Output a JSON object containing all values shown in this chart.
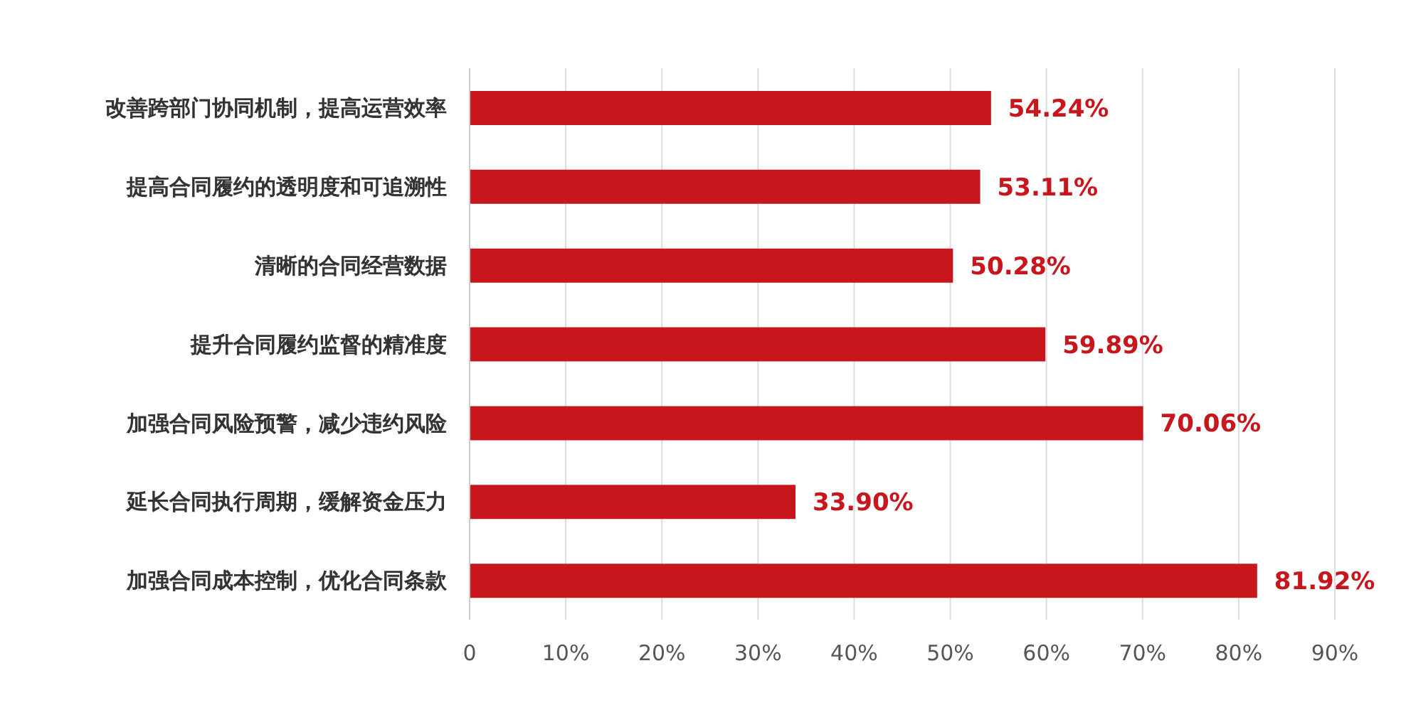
{
  "chart_data": {
    "type": "bar",
    "orientation": "horizontal",
    "categories": [
      "改善跨部门协同机制，提高运营效率",
      "提高合同履约的透明度和可追溯性",
      "清晰的合同经营数据",
      "提升合同履约监督的精准度",
      "加强合同风险预警，减少违约风险",
      "延长合同执行周期，缓解资金压力",
      "加强合同成本控制，优化合同条款"
    ],
    "values": [
      54.24,
      53.11,
      50.28,
      59.89,
      70.06,
      33.9,
      81.92
    ],
    "value_labels": [
      "54.24%",
      "53.11%",
      "50.28%",
      "59.89%",
      "70.06%",
      "33.90%",
      "81.92%"
    ],
    "color": "#c8161d",
    "xlim": [
      0,
      90
    ],
    "xticks": [
      {
        "value": 0,
        "label": "0"
      },
      {
        "value": 10,
        "label": "10%"
      },
      {
        "value": 20,
        "label": "20%"
      },
      {
        "value": 30,
        "label": "30%"
      },
      {
        "value": 40,
        "label": "40%"
      },
      {
        "value": 50,
        "label": "50%"
      },
      {
        "value": 60,
        "label": "60%"
      },
      {
        "value": 70,
        "label": "70%"
      },
      {
        "value": 80,
        "label": "80%"
      },
      {
        "value": 90,
        "label": "90%"
      }
    ],
    "grid": "x",
    "legend": false
  }
}
